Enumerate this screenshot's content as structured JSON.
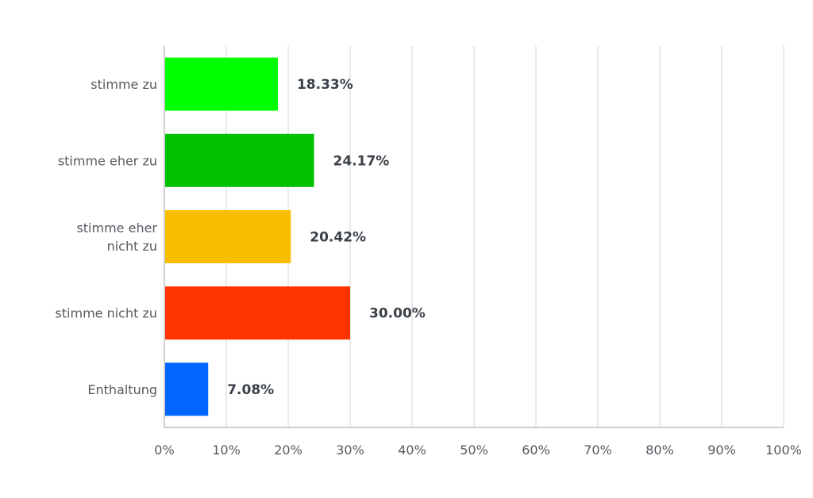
{
  "chart_data": {
    "type": "bar",
    "orientation": "horizontal",
    "categories": [
      [
        "stimme zu"
      ],
      [
        "stimme eher zu"
      ],
      [
        "stimme eher",
        "nicht zu"
      ],
      [
        "stimme nicht zu"
      ],
      [
        "Enthaltung"
      ]
    ],
    "values": [
      18.33,
      24.17,
      20.42,
      30.0,
      7.08
    ],
    "data_labels": [
      "18.33%",
      "24.17%",
      "20.42%",
      "30.00%",
      "7.08%"
    ],
    "colors": [
      "#00ff00",
      "#00c000",
      "#f9be00",
      "#ff3300",
      "#0066ff"
    ],
    "xlim": [
      0,
      100
    ],
    "x_ticks": [
      "0%",
      "10%",
      "20%",
      "30%",
      "40%",
      "50%",
      "60%",
      "70%",
      "80%",
      "90%",
      "100%"
    ],
    "grid": "vertical",
    "title": "",
    "xlabel": "",
    "ylabel": ""
  }
}
